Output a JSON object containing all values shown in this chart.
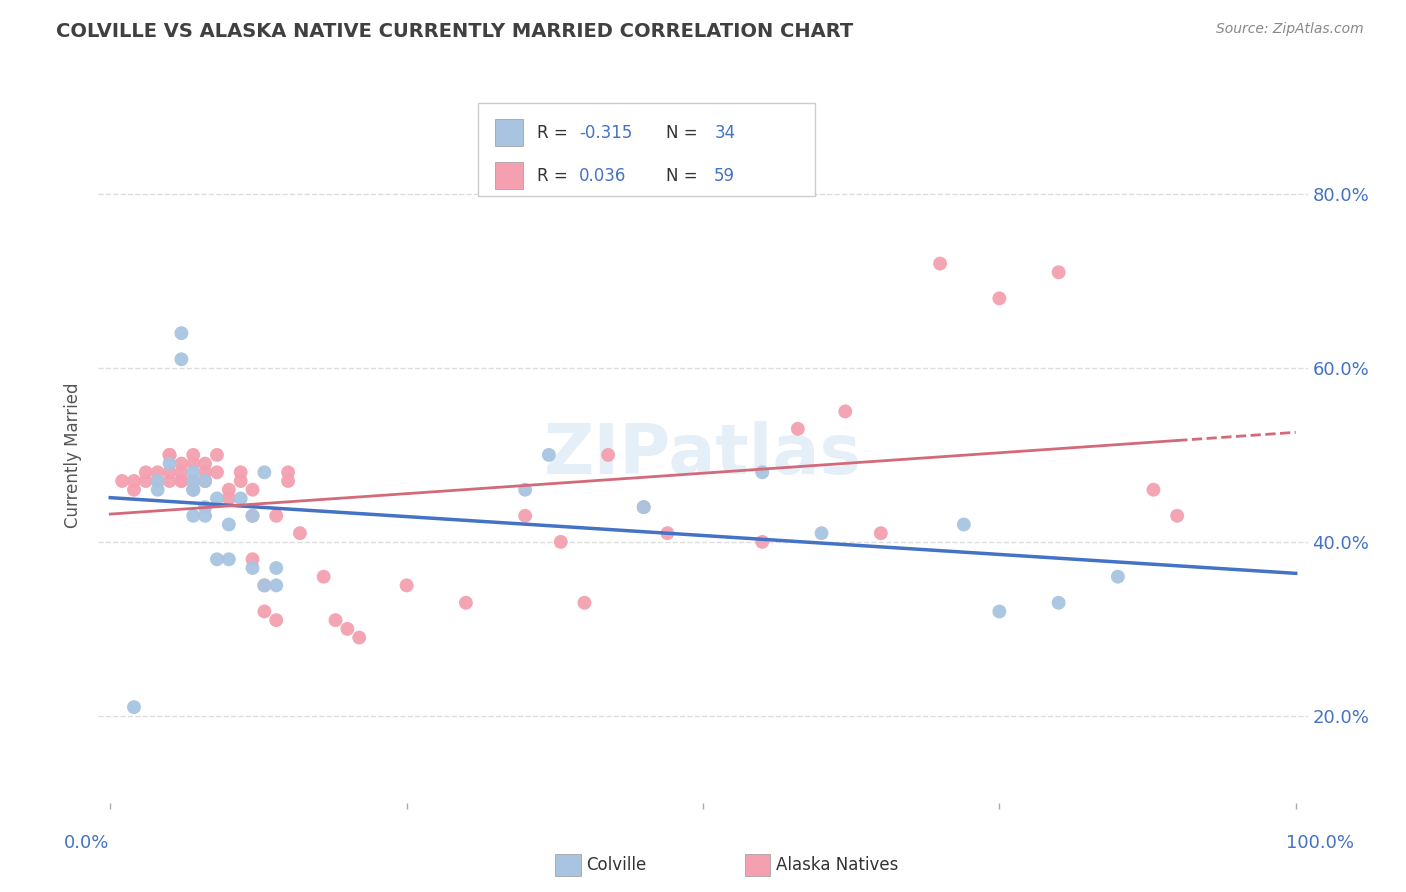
{
  "title": "COLVILLE VS ALASKA NATIVE CURRENTLY MARRIED CORRELATION CHART",
  "source": "Source: ZipAtlas.com",
  "ylabel": "Currently Married",
  "ytick_values": [
    0.2,
    0.4,
    0.6,
    0.8
  ],
  "xlim": [
    0.0,
    1.0
  ],
  "ylim": [
    0.1,
    0.9
  ],
  "legend_labels_bottom": [
    "Colville",
    "Alaska Natives"
  ],
  "colville_color": "#a8c4e0",
  "alaska_color": "#f4a0b0",
  "colville_line_color": "#4472c4",
  "alaska_line_color": "#d4697a",
  "R_colville": -0.315,
  "N_colville": 34,
  "R_alaska": 0.036,
  "N_alaska": 59,
  "colville_x": [
    0.02,
    0.04,
    0.04,
    0.05,
    0.06,
    0.06,
    0.07,
    0.07,
    0.07,
    0.07,
    0.07,
    0.08,
    0.08,
    0.08,
    0.09,
    0.09,
    0.1,
    0.1,
    0.11,
    0.12,
    0.12,
    0.13,
    0.13,
    0.14,
    0.14,
    0.35,
    0.37,
    0.45,
    0.55,
    0.6,
    0.72,
    0.75,
    0.8,
    0.85
  ],
  "colville_y": [
    0.21,
    0.47,
    0.46,
    0.49,
    0.64,
    0.61,
    0.47,
    0.46,
    0.46,
    0.48,
    0.43,
    0.47,
    0.44,
    0.43,
    0.45,
    0.38,
    0.38,
    0.42,
    0.45,
    0.43,
    0.37,
    0.35,
    0.48,
    0.37,
    0.35,
    0.46,
    0.5,
    0.44,
    0.48,
    0.41,
    0.42,
    0.32,
    0.33,
    0.36
  ],
  "alaska_x": [
    0.01,
    0.02,
    0.02,
    0.03,
    0.03,
    0.04,
    0.04,
    0.05,
    0.05,
    0.05,
    0.05,
    0.06,
    0.06,
    0.06,
    0.06,
    0.07,
    0.07,
    0.07,
    0.07,
    0.08,
    0.08,
    0.08,
    0.09,
    0.09,
    0.1,
    0.1,
    0.11,
    0.11,
    0.12,
    0.12,
    0.12,
    0.13,
    0.13,
    0.14,
    0.14,
    0.15,
    0.15,
    0.16,
    0.18,
    0.19,
    0.2,
    0.21,
    0.25,
    0.3,
    0.35,
    0.38,
    0.4,
    0.42,
    0.45,
    0.47,
    0.55,
    0.58,
    0.62,
    0.65,
    0.7,
    0.75,
    0.8,
    0.88,
    0.9
  ],
  "alaska_y": [
    0.47,
    0.47,
    0.46,
    0.48,
    0.47,
    0.48,
    0.47,
    0.48,
    0.47,
    0.5,
    0.5,
    0.49,
    0.48,
    0.47,
    0.47,
    0.5,
    0.49,
    0.47,
    0.46,
    0.49,
    0.48,
    0.47,
    0.5,
    0.48,
    0.46,
    0.45,
    0.48,
    0.47,
    0.46,
    0.43,
    0.38,
    0.35,
    0.32,
    0.43,
    0.31,
    0.48,
    0.47,
    0.41,
    0.36,
    0.31,
    0.3,
    0.29,
    0.35,
    0.33,
    0.43,
    0.4,
    0.33,
    0.5,
    0.44,
    0.41,
    0.4,
    0.53,
    0.55,
    0.41,
    0.72,
    0.68,
    0.71,
    0.46,
    0.43
  ],
  "background_color": "#ffffff",
  "grid_color": "#dddddd",
  "title_color": "#404040",
  "axis_label_color": "#4472c4",
  "watermark": "ZIPatlas"
}
